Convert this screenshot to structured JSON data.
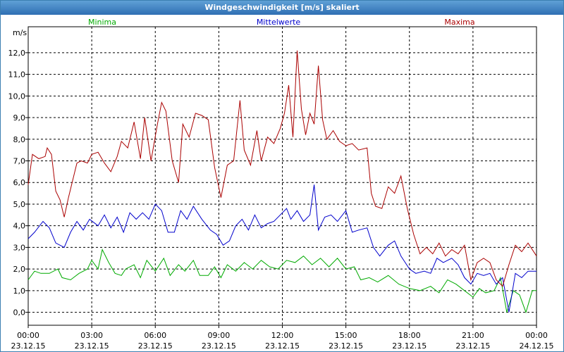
{
  "window": {
    "title": "Windgeschwindigkeit [m/s] skaliert"
  },
  "chart_data": {
    "type": "line",
    "title": "Windgeschwindigkeit [m/s] skaliert",
    "ylabel": "m/s",
    "xlabel": "",
    "ylim": [
      -0.6,
      13.2
    ],
    "xlim": [
      0,
      24
    ],
    "grid": true,
    "y_ticks": [
      "0,0",
      "1,0",
      "2,0",
      "3,0",
      "4,0",
      "5,0",
      "6,0",
      "7,0",
      "8,0",
      "9,0",
      "10,0",
      "11,0",
      "12,0"
    ],
    "x_ticks": [
      {
        "time": "00:00",
        "date": "23.12.15"
      },
      {
        "time": "03:00",
        "date": "23.12.15"
      },
      {
        "time": "06:00",
        "date": "23.12.15"
      },
      {
        "time": "09:00",
        "date": "23.12.15"
      },
      {
        "time": "12:00",
        "date": "23.12.15"
      },
      {
        "time": "15:00",
        "date": "23.12.15"
      },
      {
        "time": "18:00",
        "date": "23.12.15"
      },
      {
        "time": "21:00",
        "date": "23.12.15"
      },
      {
        "time": "00:00",
        "date": "24.12.15"
      }
    ],
    "series": [
      {
        "name": "Minima",
        "color": "#00aa00",
        "points": [
          [
            0,
            1.5
          ],
          [
            0.3,
            1.9
          ],
          [
            0.6,
            1.8
          ],
          [
            1.0,
            1.8
          ],
          [
            1.4,
            2.0
          ],
          [
            1.6,
            1.6
          ],
          [
            2.0,
            1.5
          ],
          [
            2.4,
            1.8
          ],
          [
            2.8,
            2.0
          ],
          [
            3.0,
            2.4
          ],
          [
            3.3,
            2.0
          ],
          [
            3.5,
            2.9
          ],
          [
            3.8,
            2.3
          ],
          [
            4.1,
            1.8
          ],
          [
            4.4,
            1.7
          ],
          [
            4.6,
            2.0
          ],
          [
            5.0,
            2.2
          ],
          [
            5.3,
            1.6
          ],
          [
            5.6,
            2.4
          ],
          [
            6.0,
            1.9
          ],
          [
            6.4,
            2.5
          ],
          [
            6.7,
            1.7
          ],
          [
            7.1,
            2.2
          ],
          [
            7.4,
            1.9
          ],
          [
            7.8,
            2.4
          ],
          [
            8.1,
            1.7
          ],
          [
            8.5,
            1.7
          ],
          [
            8.8,
            2.1
          ],
          [
            9.1,
            1.6
          ],
          [
            9.4,
            2.2
          ],
          [
            9.8,
            1.9
          ],
          [
            10.2,
            2.3
          ],
          [
            10.6,
            2.0
          ],
          [
            11.0,
            2.4
          ],
          [
            11.4,
            2.1
          ],
          [
            11.8,
            2.0
          ],
          [
            12.2,
            2.4
          ],
          [
            12.6,
            2.3
          ],
          [
            13.0,
            2.6
          ],
          [
            13.4,
            2.2
          ],
          [
            13.8,
            2.5
          ],
          [
            14.2,
            2.1
          ],
          [
            14.6,
            2.5
          ],
          [
            15.0,
            2.0
          ],
          [
            15.4,
            2.1
          ],
          [
            15.7,
            1.5
          ],
          [
            16.1,
            1.6
          ],
          [
            16.5,
            1.4
          ],
          [
            17.0,
            1.7
          ],
          [
            17.5,
            1.3
          ],
          [
            18.0,
            1.1
          ],
          [
            18.5,
            1.0
          ],
          [
            19.0,
            1.2
          ],
          [
            19.4,
            0.9
          ],
          [
            19.8,
            1.5
          ],
          [
            20.2,
            1.3
          ],
          [
            20.6,
            1.0
          ],
          [
            21.0,
            0.7
          ],
          [
            21.3,
            1.1
          ],
          [
            21.6,
            0.9
          ],
          [
            22.0,
            1.0
          ],
          [
            22.3,
            1.6
          ],
          [
            22.6,
            0.0
          ],
          [
            22.9,
            1.0
          ],
          [
            23.2,
            0.8
          ],
          [
            23.5,
            0.0
          ],
          [
            23.8,
            1.0
          ],
          [
            24.0,
            1.0
          ]
        ]
      },
      {
        "name": "Mittelwerte",
        "color": "#0000cc",
        "points": [
          [
            0,
            3.4
          ],
          [
            0.3,
            3.7
          ],
          [
            0.7,
            4.2
          ],
          [
            1.0,
            3.9
          ],
          [
            1.3,
            3.2
          ],
          [
            1.7,
            3.0
          ],
          [
            2.0,
            3.7
          ],
          [
            2.3,
            4.2
          ],
          [
            2.6,
            3.8
          ],
          [
            2.9,
            4.3
          ],
          [
            3.3,
            4.0
          ],
          [
            3.6,
            4.5
          ],
          [
            3.9,
            3.9
          ],
          [
            4.2,
            4.4
          ],
          [
            4.5,
            3.7
          ],
          [
            4.8,
            4.6
          ],
          [
            5.1,
            4.3
          ],
          [
            5.4,
            4.6
          ],
          [
            5.7,
            4.3
          ],
          [
            6.0,
            5.0
          ],
          [
            6.3,
            4.7
          ],
          [
            6.6,
            3.7
          ],
          [
            6.9,
            3.7
          ],
          [
            7.2,
            4.7
          ],
          [
            7.5,
            4.3
          ],
          [
            7.8,
            4.9
          ],
          [
            8.2,
            4.3
          ],
          [
            8.6,
            3.8
          ],
          [
            8.9,
            3.6
          ],
          [
            9.2,
            3.1
          ],
          [
            9.5,
            3.3
          ],
          [
            9.8,
            4.0
          ],
          [
            10.1,
            4.3
          ],
          [
            10.4,
            3.8
          ],
          [
            10.7,
            4.5
          ],
          [
            11.0,
            3.9
          ],
          [
            11.3,
            4.1
          ],
          [
            11.6,
            4.2
          ],
          [
            11.9,
            4.5
          ],
          [
            12.2,
            4.8
          ],
          [
            12.4,
            4.3
          ],
          [
            12.7,
            4.7
          ],
          [
            13.0,
            4.2
          ],
          [
            13.3,
            4.5
          ],
          [
            13.5,
            5.9
          ],
          [
            13.7,
            3.8
          ],
          [
            14.0,
            4.4
          ],
          [
            14.3,
            4.5
          ],
          [
            14.6,
            4.2
          ],
          [
            15.0,
            4.7
          ],
          [
            15.3,
            3.7
          ],
          [
            15.6,
            3.8
          ],
          [
            16.0,
            3.9
          ],
          [
            16.3,
            3.0
          ],
          [
            16.6,
            2.6
          ],
          [
            17.0,
            3.1
          ],
          [
            17.3,
            3.3
          ],
          [
            17.6,
            2.6
          ],
          [
            18.0,
            2.0
          ],
          [
            18.3,
            1.8
          ],
          [
            18.7,
            1.9
          ],
          [
            19.0,
            1.8
          ],
          [
            19.3,
            2.5
          ],
          [
            19.6,
            2.3
          ],
          [
            20.0,
            2.5
          ],
          [
            20.3,
            2.2
          ],
          [
            20.6,
            1.6
          ],
          [
            20.9,
            1.3
          ],
          [
            21.2,
            1.8
          ],
          [
            21.5,
            1.7
          ],
          [
            21.8,
            1.8
          ],
          [
            22.1,
            1.3
          ],
          [
            22.4,
            1.6
          ],
          [
            22.7,
            0.0
          ],
          [
            23.0,
            1.8
          ],
          [
            23.3,
            1.6
          ],
          [
            23.6,
            1.9
          ],
          [
            24.0,
            1.9
          ]
        ]
      },
      {
        "name": "Maxima",
        "color": "#aa0000",
        "points": [
          [
            0,
            5.9
          ],
          [
            0.2,
            7.3
          ],
          [
            0.5,
            7.1
          ],
          [
            0.8,
            7.2
          ],
          [
            0.9,
            7.6
          ],
          [
            1.1,
            7.3
          ],
          [
            1.3,
            5.6
          ],
          [
            1.5,
            5.2
          ],
          [
            1.7,
            4.4
          ],
          [
            1.9,
            5.3
          ],
          [
            2.1,
            6.1
          ],
          [
            2.3,
            6.9
          ],
          [
            2.5,
            7.0
          ],
          [
            2.8,
            6.9
          ],
          [
            3.0,
            7.3
          ],
          [
            3.3,
            7.4
          ],
          [
            3.6,
            6.9
          ],
          [
            3.9,
            6.5
          ],
          [
            4.2,
            7.2
          ],
          [
            4.4,
            7.9
          ],
          [
            4.7,
            7.6
          ],
          [
            5.0,
            8.8
          ],
          [
            5.3,
            7.1
          ],
          [
            5.5,
            9.0
          ],
          [
            5.8,
            7.0
          ],
          [
            6.1,
            8.7
          ],
          [
            6.3,
            9.7
          ],
          [
            6.5,
            9.3
          ],
          [
            6.8,
            7.0
          ],
          [
            7.1,
            6.0
          ],
          [
            7.3,
            8.7
          ],
          [
            7.6,
            8.1
          ],
          [
            7.9,
            9.2
          ],
          [
            8.2,
            9.1
          ],
          [
            8.5,
            8.9
          ],
          [
            8.8,
            6.7
          ],
          [
            9.1,
            5.3
          ],
          [
            9.4,
            6.8
          ],
          [
            9.7,
            7.0
          ],
          [
            10.0,
            9.8
          ],
          [
            10.2,
            7.5
          ],
          [
            10.5,
            6.8
          ],
          [
            10.8,
            8.4
          ],
          [
            11.0,
            7.0
          ],
          [
            11.3,
            8.1
          ],
          [
            11.6,
            7.8
          ],
          [
            11.9,
            8.5
          ],
          [
            12.1,
            9.2
          ],
          [
            12.3,
            10.5
          ],
          [
            12.5,
            8.1
          ],
          [
            12.7,
            12.1
          ],
          [
            12.9,
            9.4
          ],
          [
            13.1,
            8.2
          ],
          [
            13.3,
            9.2
          ],
          [
            13.5,
            8.7
          ],
          [
            13.7,
            11.4
          ],
          [
            13.9,
            8.9
          ],
          [
            14.1,
            8.0
          ],
          [
            14.4,
            8.4
          ],
          [
            14.7,
            7.9
          ],
          [
            15.0,
            7.7
          ],
          [
            15.3,
            7.8
          ],
          [
            15.6,
            7.5
          ],
          [
            16.0,
            7.6
          ],
          [
            16.2,
            5.5
          ],
          [
            16.4,
            4.9
          ],
          [
            16.7,
            4.8
          ],
          [
            17.0,
            5.8
          ],
          [
            17.3,
            5.5
          ],
          [
            17.6,
            6.3
          ],
          [
            17.9,
            4.8
          ],
          [
            18.2,
            3.6
          ],
          [
            18.5,
            2.7
          ],
          [
            18.8,
            3.0
          ],
          [
            19.1,
            2.7
          ],
          [
            19.4,
            3.2
          ],
          [
            19.7,
            2.6
          ],
          [
            20.0,
            2.9
          ],
          [
            20.3,
            2.7
          ],
          [
            20.6,
            3.1
          ],
          [
            20.9,
            1.5
          ],
          [
            21.2,
            2.3
          ],
          [
            21.5,
            2.5
          ],
          [
            21.8,
            2.3
          ],
          [
            22.1,
            1.5
          ],
          [
            22.4,
            1.2
          ],
          [
            22.7,
            2.2
          ],
          [
            23.0,
            3.1
          ],
          [
            23.3,
            2.8
          ],
          [
            23.6,
            3.2
          ],
          [
            24.0,
            2.6
          ]
        ]
      }
    ]
  }
}
